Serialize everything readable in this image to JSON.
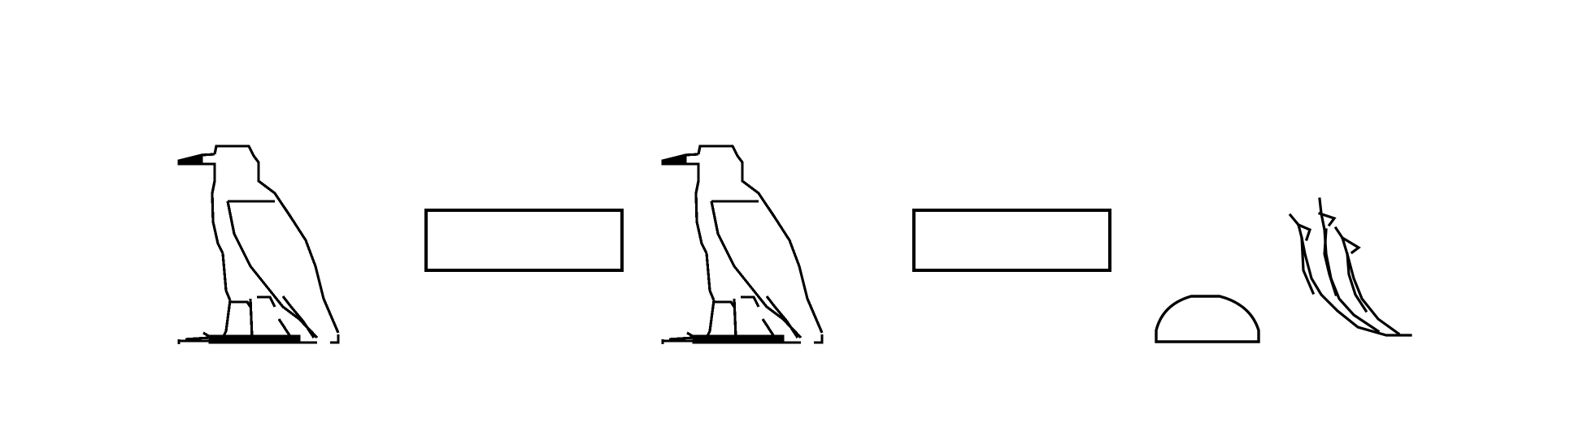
{
  "sequence": [
    {
      "id": "vulture-1",
      "icon": "egyptian-vulture-hieroglyph-icon"
    },
    {
      "id": "bread-1",
      "icon": "rectangle-mat-hieroglyph-icon"
    },
    {
      "id": "vulture-2",
      "icon": "egyptian-vulture-hieroglyph-icon"
    },
    {
      "id": "bread-2",
      "icon": "rectangle-mat-hieroglyph-icon"
    },
    {
      "id": "loaf",
      "icon": "bread-loaf-hieroglyph-icon"
    },
    {
      "id": "plant",
      "icon": "flowering-reed-hieroglyph-icon"
    }
  ],
  "colors": {
    "background": "#ffffff",
    "ink": "#000000"
  }
}
